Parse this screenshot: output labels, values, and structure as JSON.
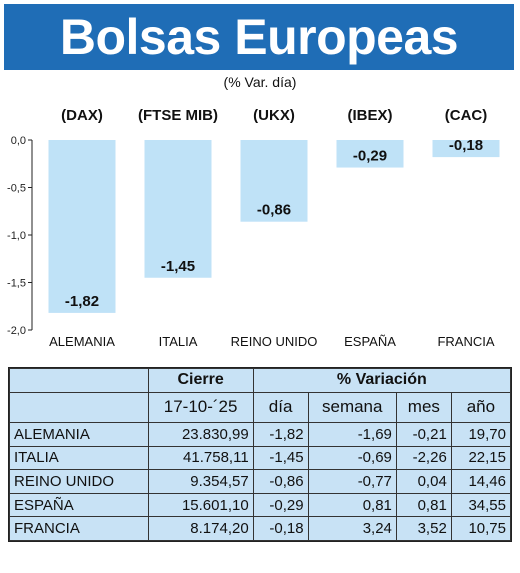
{
  "header": {
    "title": "Bolsas Europeas",
    "subtitle": "(% Var. día)"
  },
  "colors": {
    "banner": "#1f6db6",
    "bar": "#bfe2f7",
    "table_bg": "#c8e2f5"
  },
  "chart_data": {
    "type": "bar",
    "indices": [
      "(DAX)",
      "(FTSE MIB)",
      "(UKX)",
      "(IBEX)",
      "(CAC)"
    ],
    "categories": [
      "ALEMANIA",
      "ITALIA",
      "REINO UNIDO",
      "ESPAÑA",
      "FRANCIA"
    ],
    "values": [
      -1.82,
      -1.45,
      -0.86,
      -0.29,
      -0.18
    ],
    "value_labels": [
      "-1,82",
      "-1,45",
      "-0,86",
      "-0,29",
      "-0,18"
    ],
    "ylim": [
      -2.0,
      0.0
    ],
    "yticks": [
      0.0,
      -0.5,
      -1.0,
      -1.5,
      -2.0
    ],
    "ytick_labels": [
      "0,0",
      "-0,5",
      "-1,0",
      "-1,5",
      "-2,0"
    ],
    "grid": false
  },
  "table": {
    "group_headers": {
      "cierre": "Cierre",
      "variacion": "% Variación"
    },
    "columns": [
      "17-10-´25",
      "día",
      "semana",
      "mes",
      "año"
    ],
    "rows": [
      {
        "name": "ALEMANIA",
        "cierre": "23.830,99",
        "dia": "-1,82",
        "semana": "-1,69",
        "mes": "-0,21",
        "anio": "19,70"
      },
      {
        "name": "ITALIA",
        "cierre": "41.758,11",
        "dia": "-1,45",
        "semana": "-0,69",
        "mes": "-2,26",
        "anio": "22,15"
      },
      {
        "name": "REINO UNIDO",
        "cierre": "9.354,57",
        "dia": "-0,86",
        "semana": "-0,77",
        "mes": "0,04",
        "anio": "14,46"
      },
      {
        "name": "ESPAÑA",
        "cierre": "15.601,10",
        "dia": "-0,29",
        "semana": "0,81",
        "mes": "0,81",
        "anio": "34,55"
      },
      {
        "name": "FRANCIA",
        "cierre": "8.174,20",
        "dia": "-0,18",
        "semana": "3,24",
        "mes": "3,52",
        "anio": "10,75"
      }
    ]
  }
}
